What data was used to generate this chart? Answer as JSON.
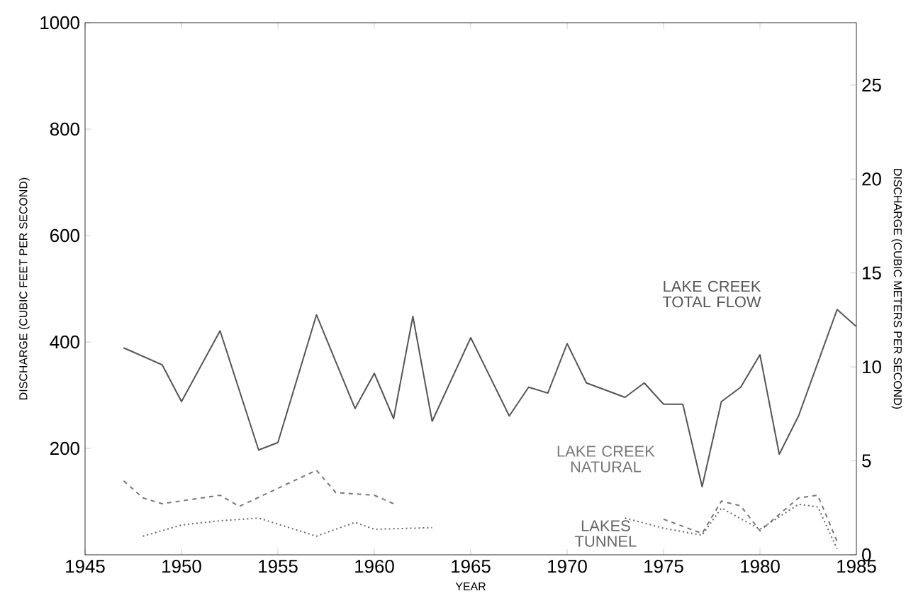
{
  "chart_data": {
    "type": "line",
    "xlabel": "YEAR",
    "ylabel": "DISCHARGE (CUBIC FEET PER SECOND)",
    "y2label": "DISCHARGE (CUBIC METERS PER SECOND)",
    "xlim": [
      1945,
      1985
    ],
    "xticks": [
      1945,
      1950,
      1955,
      1960,
      1965,
      1970,
      1975,
      1980,
      1985
    ],
    "ylim": [
      0,
      1000
    ],
    "yticks": [
      200,
      400,
      600,
      800,
      1000
    ],
    "y2lim": [
      0,
      28.32
    ],
    "y2ticks": [
      0,
      5,
      10,
      15,
      20,
      25
    ],
    "series": [
      {
        "name": "LAKE CREEK TOTAL FLOW",
        "color": "#555555",
        "line_style": "solid",
        "x": [
          1947,
          1949,
          1950,
          1952,
          1954,
          1955,
          1957,
          1959,
          1960,
          1961,
          1962,
          1963,
          1965,
          1967,
          1968,
          1969,
          1970,
          1971,
          1973,
          1974,
          1975,
          1976,
          1977,
          1978,
          1979,
          1980,
          1981,
          1982,
          1984,
          1985
        ],
        "values": [
          389,
          357,
          288,
          421,
          197,
          211,
          451,
          275,
          341,
          256,
          448,
          251,
          408,
          261,
          315,
          304,
          397,
          323,
          296,
          323,
          283,
          283,
          128,
          288,
          315,
          376,
          189,
          261,
          461,
          429
        ]
      },
      {
        "name": "LAKE CREEK NATURAL",
        "color": "#777777",
        "line_style": "dashed",
        "x": [
          1947,
          1948,
          1949,
          1952,
          1953,
          1957,
          1958,
          1960,
          1961,
          1966,
          1975,
          1977,
          1978,
          1979,
          1980,
          1982,
          1983,
          1984
        ],
        "values": [
          139,
          107,
          96,
          112,
          91,
          159,
          117,
          112,
          96,
          null,
          67,
          40,
          101,
          92,
          45,
          107,
          112,
          25
        ]
      },
      {
        "name": "LAKES TUNNEL",
        "color": "#666666",
        "line_style": "dotted",
        "x": [
          1948,
          1950,
          1952,
          1954,
          1957,
          1959,
          1960,
          1963,
          1968,
          1973,
          1975,
          1977,
          1978,
          1980,
          1982,
          1983,
          1984
        ],
        "values": [
          35,
          56,
          64,
          69,
          35,
          61,
          48,
          51,
          null,
          69,
          50,
          37,
          88,
          48,
          95,
          90,
          11
        ]
      }
    ]
  }
}
